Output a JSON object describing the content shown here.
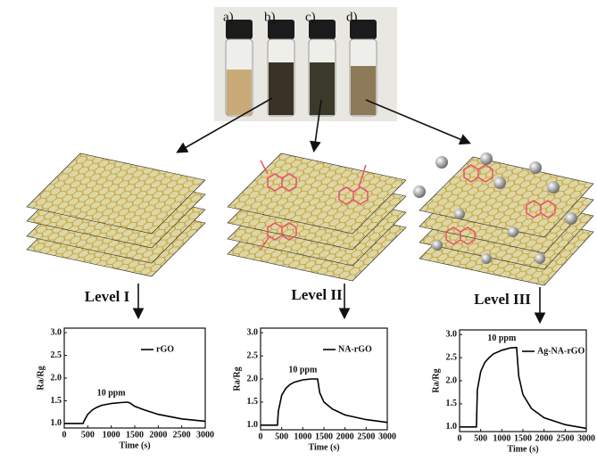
{
  "vial_labels": [
    "a)",
    "b)",
    "c)",
    "d)"
  ],
  "levels": [
    "Level I",
    "Level II",
    "Level III"
  ],
  "chart_data": [
    {
      "type": "line",
      "xlabel": "Time (s)",
      "ylabel": "Ra/Rg",
      "annotation": "10 ppm",
      "x": [
        0,
        400,
        420,
        500,
        600,
        700,
        800,
        1000,
        1200,
        1350,
        1400,
        1500,
        1700,
        2000,
        2500,
        3000
      ],
      "series": [
        {
          "name": "rGO",
          "color": "#000000",
          "values": [
            1.0,
            1.0,
            1.05,
            1.2,
            1.3,
            1.36,
            1.4,
            1.44,
            1.46,
            1.47,
            1.45,
            1.38,
            1.3,
            1.2,
            1.1,
            1.05
          ]
        }
      ],
      "xlim": [
        0,
        3000
      ],
      "xticks": [
        0,
        500,
        1000,
        1500,
        2000,
        2500,
        3000
      ],
      "ylim": [
        0.9,
        3.1
      ],
      "yticks": [
        {
          "value": 1,
          "label": "1.0"
        },
        {
          "value": 1.5,
          "label": "1.5"
        },
        {
          "value": 2,
          "label": "2.0"
        },
        {
          "value": 2.5,
          "label": "2.5"
        },
        {
          "value": 3,
          "label": "3.0"
        }
      ],
      "legend": "upper right",
      "grid": false
    },
    {
      "type": "line",
      "xlabel": "Time (s)",
      "ylabel": "Ra/Rg",
      "annotation": "10 ppm",
      "x": [
        0,
        400,
        420,
        500,
        600,
        700,
        800,
        1000,
        1200,
        1350,
        1400,
        1500,
        1700,
        2000,
        2500,
        3000
      ],
      "series": [
        {
          "name": "NA-rGO",
          "color": "#000000",
          "values": [
            1.0,
            1.0,
            1.3,
            1.65,
            1.8,
            1.88,
            1.93,
            1.98,
            2.0,
            2.0,
            1.7,
            1.5,
            1.35,
            1.22,
            1.12,
            1.06
          ]
        }
      ],
      "xlim": [
        0,
        3000
      ],
      "xticks": [
        0,
        500,
        1000,
        1500,
        2000,
        2500,
        3000
      ],
      "ylim": [
        0.9,
        3.1
      ],
      "yticks": [
        {
          "value": 1,
          "label": "1.0"
        },
        {
          "value": 1.5,
          "label": "1.5"
        },
        {
          "value": 2,
          "label": "2.0"
        },
        {
          "value": 2.5,
          "label": "2.5"
        },
        {
          "value": 3,
          "label": "3.0"
        }
      ],
      "legend": "upper right",
      "grid": false
    },
    {
      "type": "line",
      "xlabel": "Time (s)",
      "ylabel": "Ra/Rg",
      "annotation": "10 ppm",
      "x": [
        0,
        400,
        420,
        500,
        600,
        700,
        800,
        1000,
        1200,
        1350,
        1400,
        1500,
        1700,
        2000,
        2500,
        3000
      ],
      "series": [
        {
          "name": "Ag-NA-rGO",
          "color": "#000000",
          "values": [
            1.0,
            1.0,
            1.8,
            2.2,
            2.4,
            2.5,
            2.58,
            2.66,
            2.71,
            2.72,
            2.1,
            1.7,
            1.4,
            1.2,
            1.05,
            0.97
          ]
        }
      ],
      "xlim": [
        0,
        3000
      ],
      "xticks": [
        0,
        500,
        1000,
        1500,
        2000,
        2500,
        3000
      ],
      "ylim": [
        0.9,
        3.1
      ],
      "yticks": [
        {
          "value": 1,
          "label": "1.0"
        },
        {
          "value": 1.5,
          "label": "1.5"
        },
        {
          "value": 2,
          "label": "2.0"
        },
        {
          "value": 2.5,
          "label": "2.5"
        },
        {
          "value": 3,
          "label": "3.0"
        }
      ],
      "legend": "upper right",
      "grid": false
    }
  ]
}
